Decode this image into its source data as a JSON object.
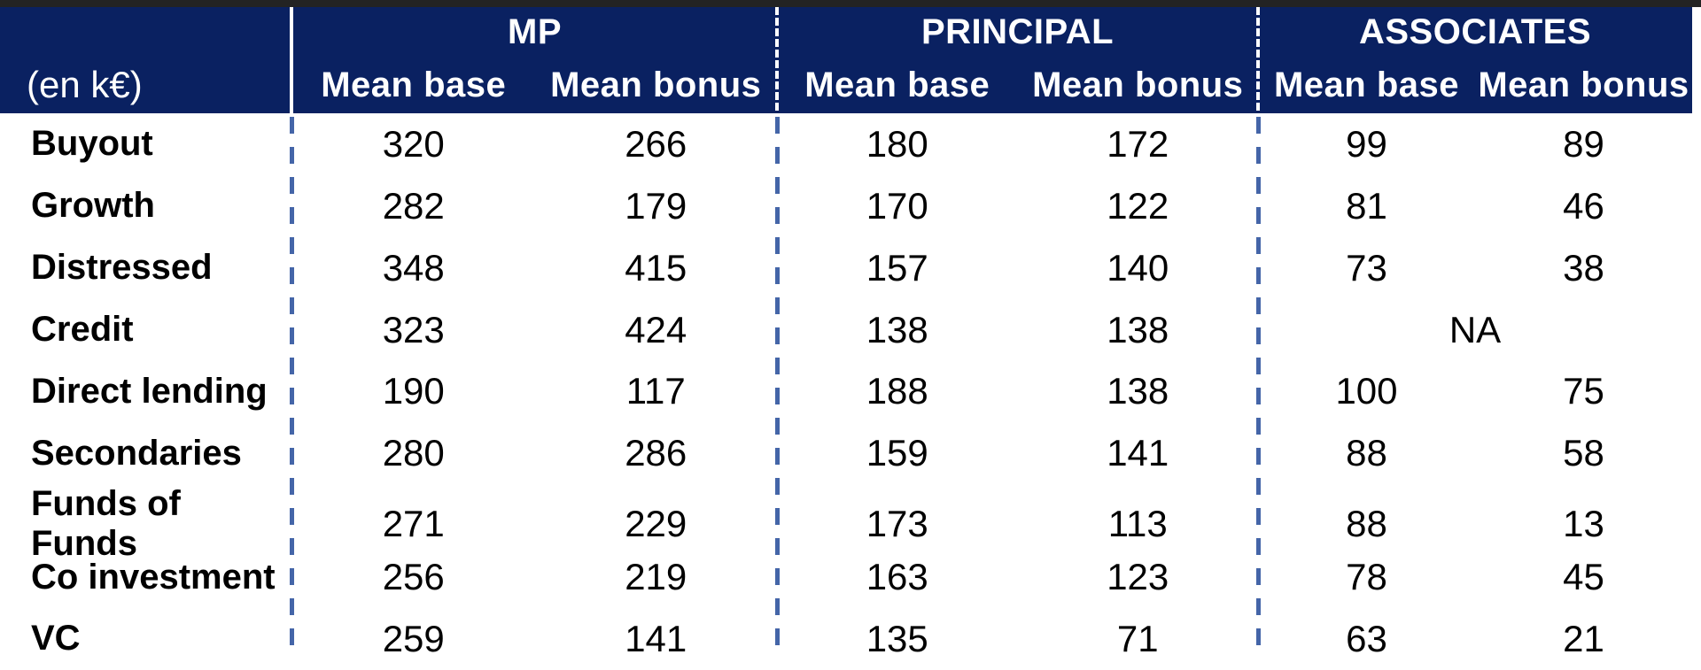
{
  "table": {
    "unit_label": "(en k€)",
    "groups": [
      "MP",
      "PRINCIPAL",
      "ASSOCIATES"
    ],
    "subheaders": [
      "Mean base",
      "Mean bonus",
      "Mean base",
      "Mean bonus",
      "Mean base",
      "Mean bonus"
    ],
    "rows": [
      {
        "label": "Buyout",
        "cells": [
          "320",
          "266",
          "180",
          "172",
          "99",
          "89"
        ]
      },
      {
        "label": "Growth",
        "cells": [
          "282",
          "179",
          "170",
          "122",
          "81",
          "46"
        ]
      },
      {
        "label": "Distressed",
        "cells": [
          "348",
          "415",
          "157",
          "140",
          "73",
          "38"
        ]
      },
      {
        "label": "Credit",
        "cells": [
          "323",
          "424",
          "138",
          "138",
          "NA"
        ]
      },
      {
        "label": "Direct lending",
        "cells": [
          "190",
          "117",
          "188",
          "138",
          "100",
          "75"
        ]
      },
      {
        "label": "Secondaries",
        "cells": [
          "280",
          "286",
          "159",
          "141",
          "88",
          "58"
        ]
      },
      {
        "label": "Funds of Funds",
        "cells": [
          "271",
          "229",
          "173",
          "113",
          "88",
          "13"
        ]
      },
      {
        "label": "Co investment",
        "cells": [
          "256",
          "219",
          "163",
          "123",
          "78",
          "45"
        ]
      },
      {
        "label": "VC",
        "cells": [
          "259",
          "141",
          "135",
          "71",
          "63",
          "21"
        ]
      }
    ]
  },
  "colors": {
    "header_bg": "#0a2161",
    "header_text": "#ffffff",
    "body_bg": "#ffffff",
    "body_text": "#000000",
    "divider_dash_blue": "#4465a8",
    "header_divider_white": "#ffffff",
    "top_bar": "#232323"
  },
  "chart_data": {
    "type": "table",
    "title": "",
    "unit": "(en k€)",
    "column_groups": [
      "MP",
      "PRINCIPAL",
      "ASSOCIATES"
    ],
    "columns_per_group": [
      "Mean base",
      "Mean bonus"
    ],
    "rows": [
      {
        "label": "Buyout",
        "MP": [
          320,
          266
        ],
        "PRINCIPAL": [
          180,
          172
        ],
        "ASSOCIATES": [
          99,
          89
        ]
      },
      {
        "label": "Growth",
        "MP": [
          282,
          179
        ],
        "PRINCIPAL": [
          170,
          122
        ],
        "ASSOCIATES": [
          81,
          46
        ]
      },
      {
        "label": "Distressed",
        "MP": [
          348,
          415
        ],
        "PRINCIPAL": [
          157,
          140
        ],
        "ASSOCIATES": [
          73,
          38
        ]
      },
      {
        "label": "Credit",
        "MP": [
          323,
          424
        ],
        "PRINCIPAL": [
          138,
          138
        ],
        "ASSOCIATES": "NA"
      },
      {
        "label": "Direct lending",
        "MP": [
          190,
          117
        ],
        "PRINCIPAL": [
          188,
          138
        ],
        "ASSOCIATES": [
          100,
          75
        ]
      },
      {
        "label": "Secondaries",
        "MP": [
          280,
          286
        ],
        "PRINCIPAL": [
          159,
          141
        ],
        "ASSOCIATES": [
          88,
          58
        ]
      },
      {
        "label": "Funds of Funds",
        "MP": [
          271,
          229
        ],
        "PRINCIPAL": [
          173,
          113
        ],
        "ASSOCIATES": [
          88,
          13
        ]
      },
      {
        "label": "Co investment",
        "MP": [
          256,
          219
        ],
        "PRINCIPAL": [
          163,
          123
        ],
        "ASSOCIATES": [
          78,
          45
        ]
      },
      {
        "label": "VC",
        "MP": [
          259,
          141
        ],
        "PRINCIPAL": [
          135,
          71
        ],
        "ASSOCIATES": [
          63,
          21
        ]
      }
    ]
  }
}
